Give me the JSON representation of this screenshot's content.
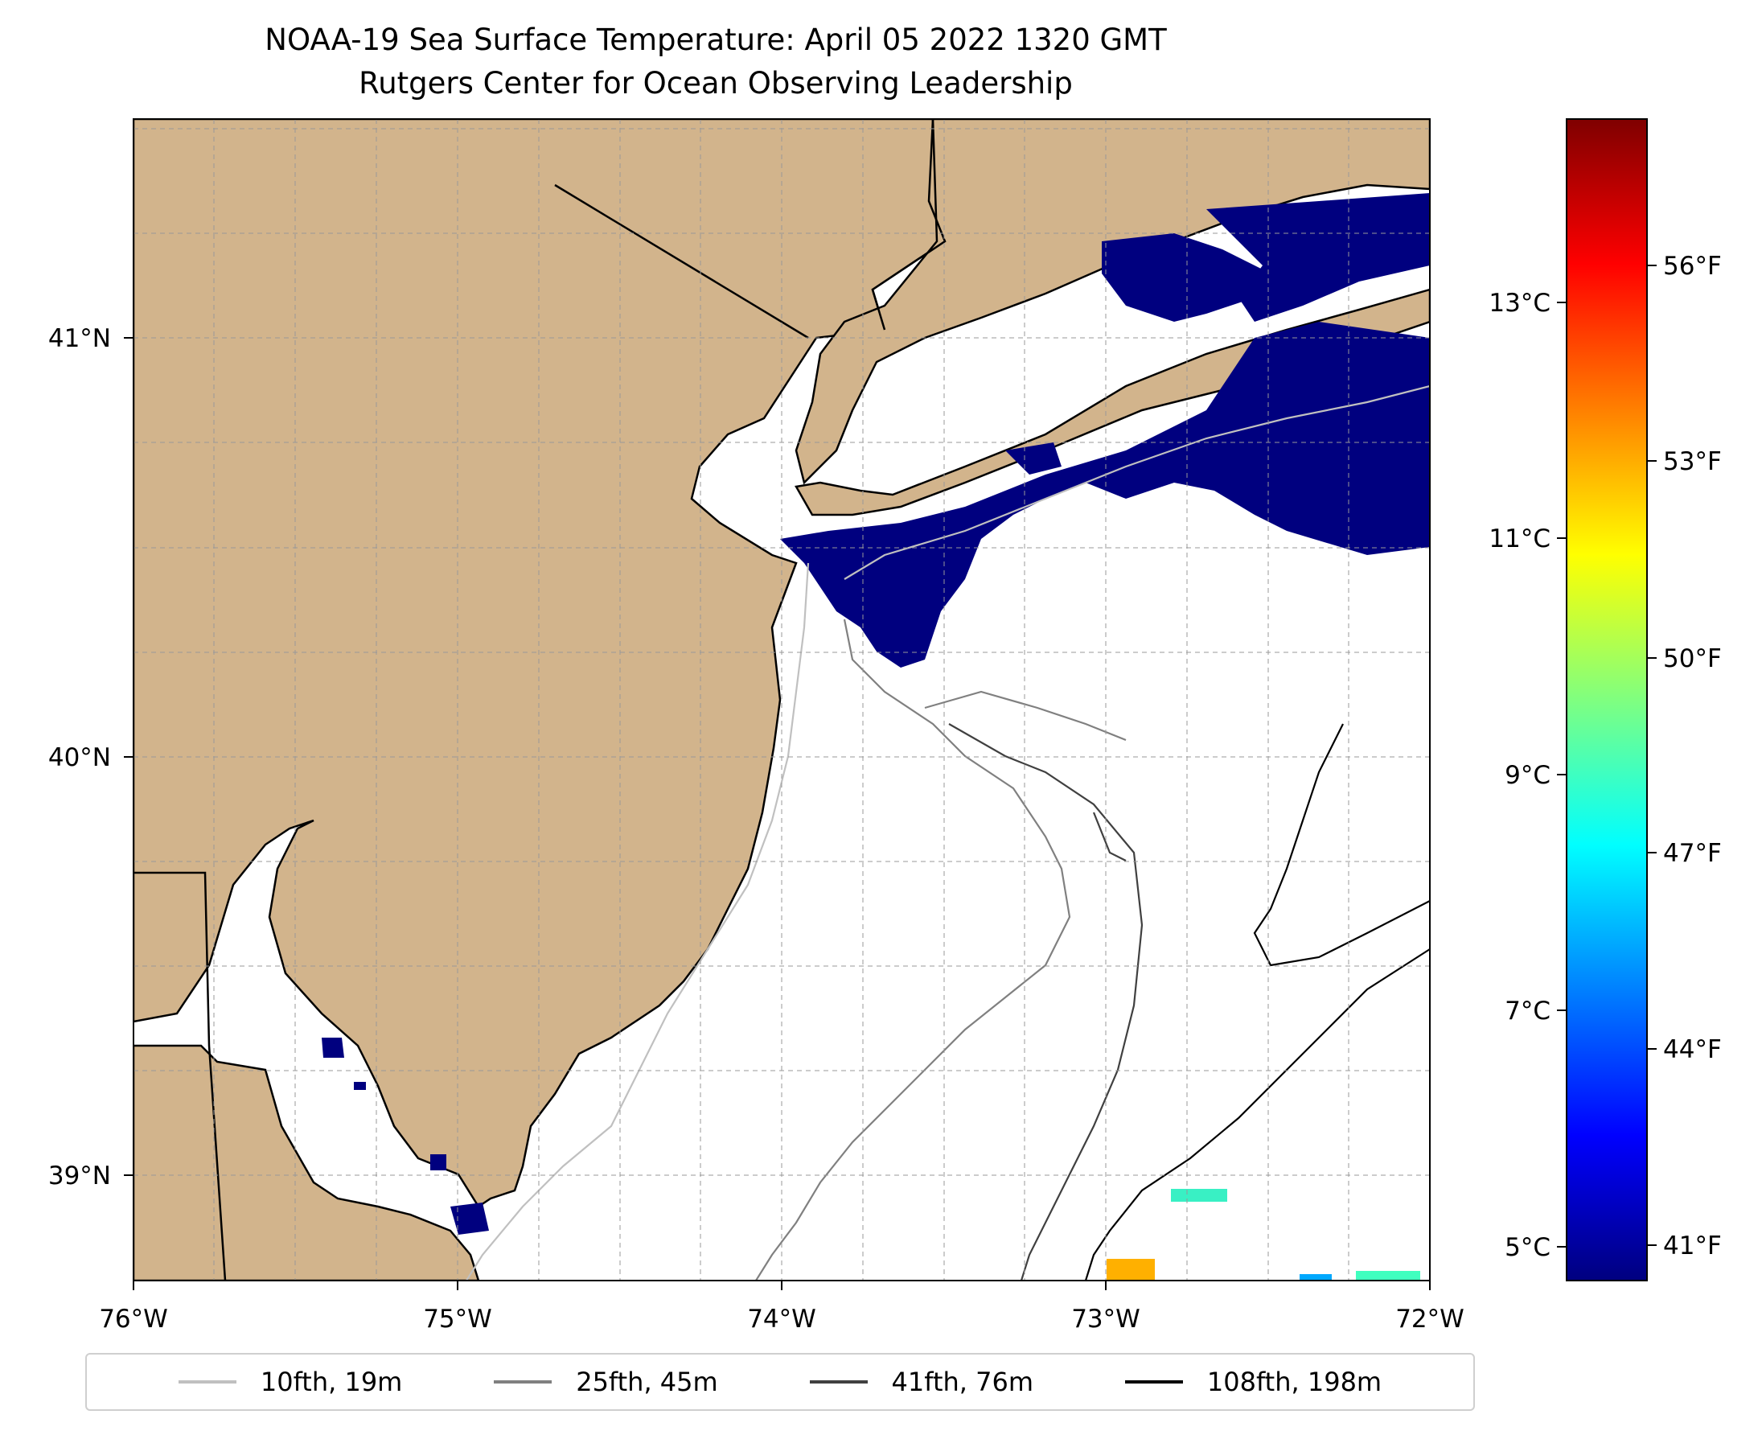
{
  "title": "NOAA-19 Sea Surface Temperature: April 05 2022 1320 GMT",
  "subtitle": "Rutgers Center for Ocean Observing Leadership",
  "colors": {
    "land": "#d2b48c",
    "ocean": "#ffffff",
    "cloud_cold": "#00007f",
    "gridline": "#999999"
  },
  "map": {
    "lon_range": [
      -76,
      -72
    ],
    "lat_range": [
      38.7,
      41.55
    ],
    "lon_ticks": [
      "76°W",
      "75°W",
      "74°W",
      "73°W",
      "72°W"
    ],
    "lat_ticks": [
      "39°N",
      "40°N",
      "41°N"
    ]
  },
  "colorbar": {
    "colormap": "jet",
    "celsius_ticks": [
      "5°C",
      "7°C",
      "9°C",
      "11°C",
      "13°C"
    ],
    "fahrenheit_ticks": [
      "41°F",
      "44°F",
      "47°F",
      "50°F",
      "53°F",
      "56°F"
    ]
  },
  "legend": [
    {
      "label": "10fth, 19m",
      "color": "#c0c0c0"
    },
    {
      "label": "25fth, 45m",
      "color": "#808080"
    },
    {
      "label": "41fth, 76m",
      "color": "#404040"
    },
    {
      "label": "108fth, 198m",
      "color": "#000000"
    }
  ]
}
